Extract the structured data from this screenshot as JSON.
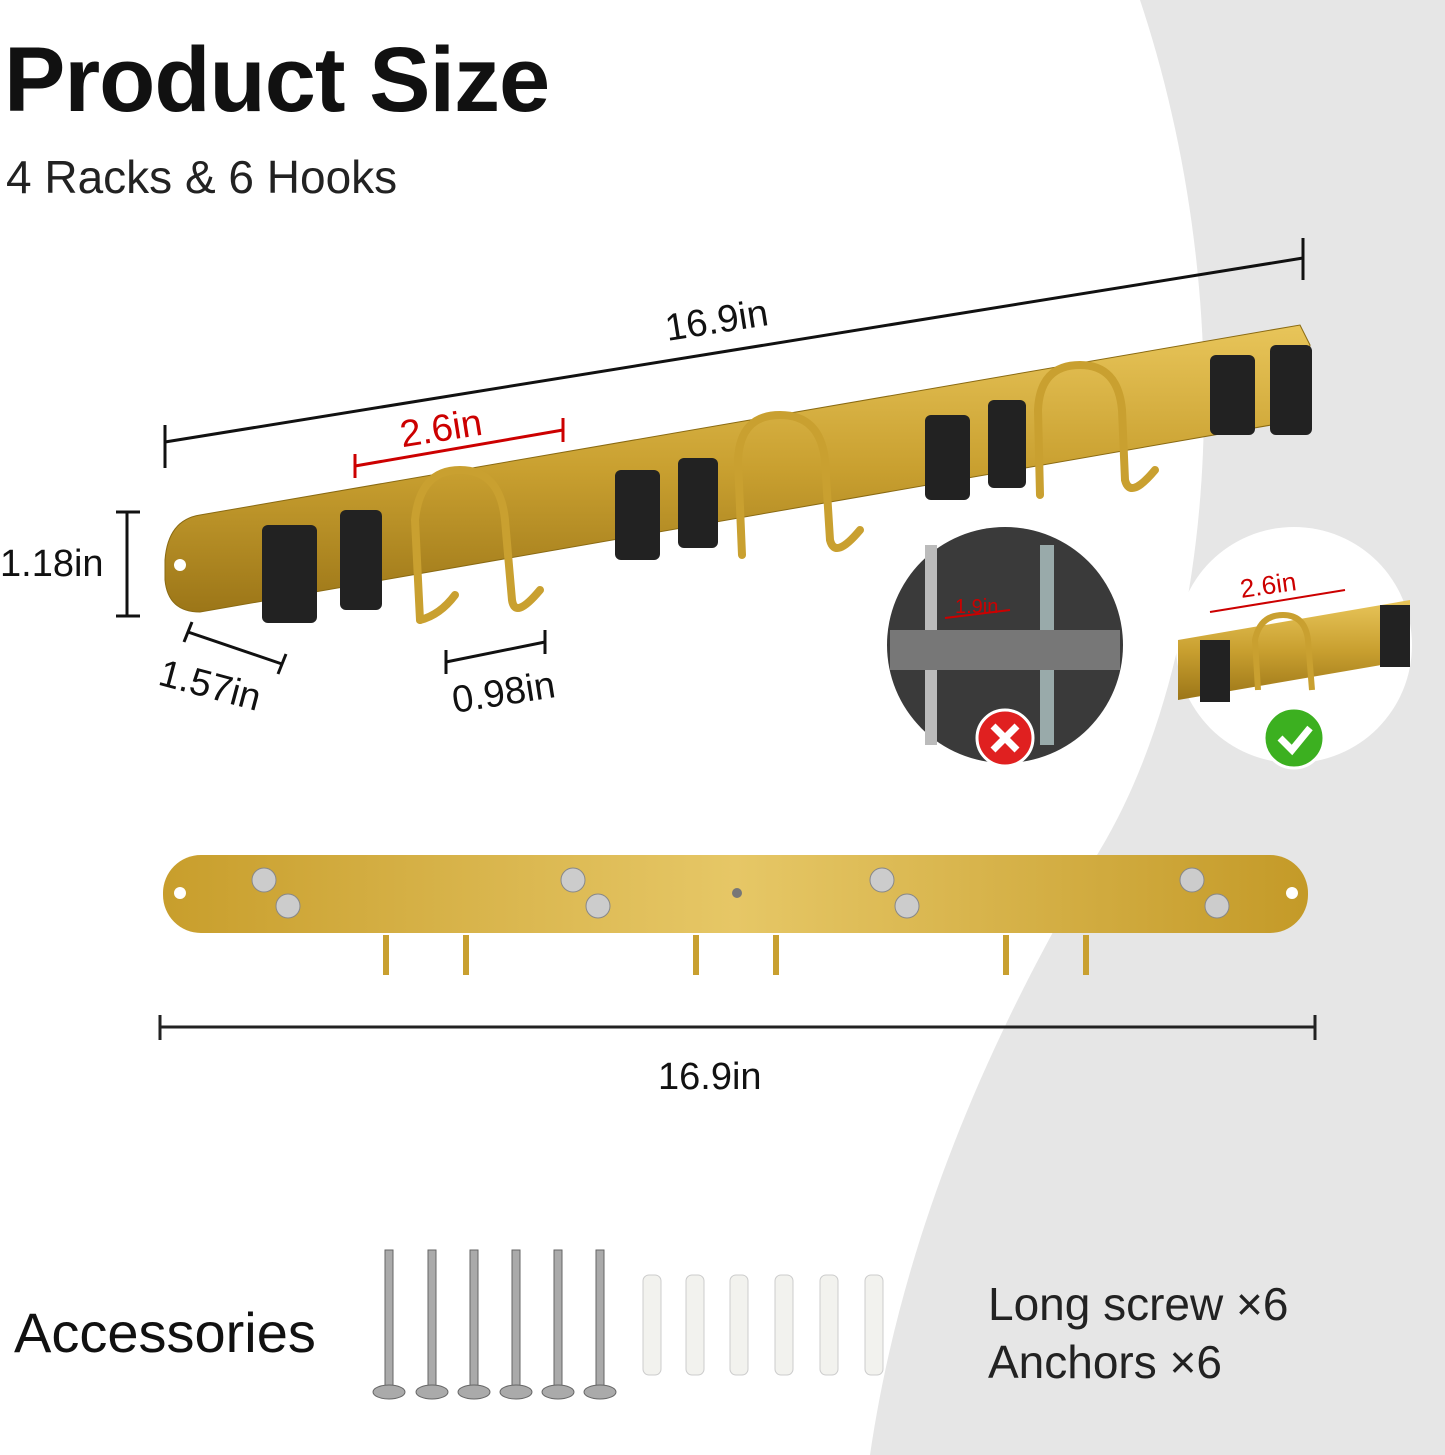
{
  "header": {
    "title": "Product Size",
    "subtitle": "4 Racks & 6 Hooks"
  },
  "dimensions": {
    "top_length": "16.9in",
    "rack_spacing": "2.6in",
    "height": "1.18in",
    "rack_depth": "1.57in",
    "hook_spacing": "0.98in",
    "bottom_length": "16.9in"
  },
  "comparison": {
    "bad_spacing": "1.9in",
    "bad_icon": "red-x-icon",
    "good_spacing": "2.6in",
    "good_icon": "green-check-icon"
  },
  "accessories": {
    "label": "Accessories",
    "items": [
      "Long screw ×6",
      "Anchors ×6"
    ]
  },
  "colors": {
    "gold": "#c9a030",
    "background_gray": "#e6e6e6",
    "dimension_red": "#c00000"
  }
}
